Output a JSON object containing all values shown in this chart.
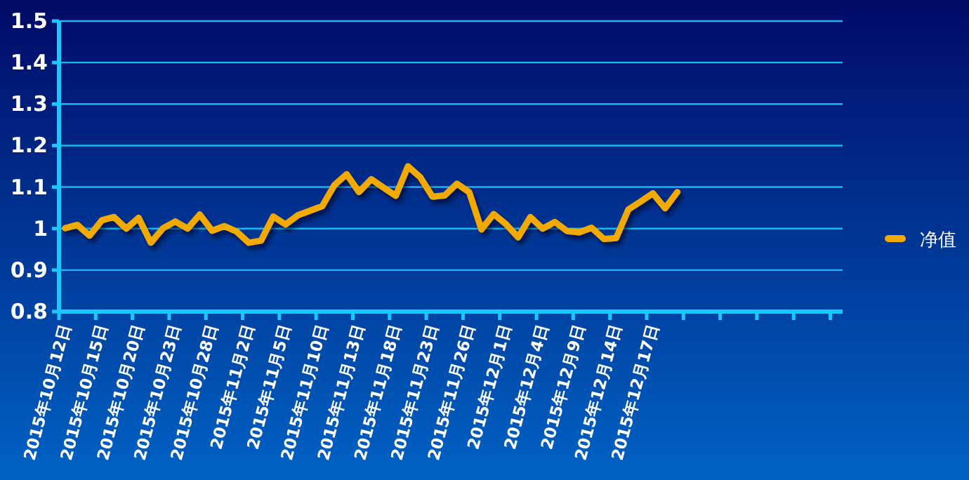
{
  "chart_data": {
    "type": "line",
    "categories": [
      "2015年10月12日",
      null,
      null,
      "2015年10月15日",
      null,
      null,
      "2015年10月20日",
      null,
      null,
      "2015年10月23日",
      null,
      null,
      "2015年10月28日",
      null,
      null,
      "2015年11月2日",
      null,
      null,
      "2015年11月5日",
      null,
      null,
      "2015年11月10日",
      null,
      null,
      "2015年11月13日",
      null,
      null,
      "2015年11月18日",
      null,
      null,
      "2015年11月23日",
      null,
      null,
      "2015年11月26日",
      null,
      null,
      "2015年12月1日",
      null,
      null,
      "2015年12月4日",
      null,
      null,
      "2015年12月9日",
      null,
      null,
      "2015年12月14日",
      null,
      null,
      "2015年12月17日",
      null,
      null,
      null,
      null,
      null,
      null,
      null,
      null,
      null,
      null,
      null,
      null,
      null,
      null,
      null
    ],
    "series": [
      {
        "name": "净值",
        "color": "#f2a900",
        "values": [
          1.001,
          1.009,
          0.983,
          1.02,
          1.028,
          1.0,
          1.026,
          0.966,
          1.001,
          1.017,
          1.0,
          1.034,
          0.995,
          1.006,
          0.993,
          0.966,
          0.971,
          1.029,
          1.01,
          1.032,
          1.043,
          1.054,
          1.105,
          1.131,
          1.088,
          1.119,
          1.099,
          1.079,
          1.15,
          1.124,
          1.077,
          1.08,
          1.108,
          1.088,
          0.998,
          1.035,
          1.011,
          0.979,
          1.028,
          1.0,
          1.016,
          0.994,
          0.991,
          1.002,
          0.975,
          0.977,
          1.046,
          1.065,
          1.085,
          1.049,
          1.088,
          null,
          null,
          null,
          null,
          null,
          null,
          null,
          null,
          null,
          null,
          null,
          null,
          null
        ]
      }
    ],
    "ylim": [
      0.8,
      1.5
    ],
    "yticks": [
      0.8,
      0.9,
      {
        "value": 1.0,
        "label": "1"
      },
      1.1,
      1.2,
      1.3,
      1.4,
      1.5
    ],
    "grid": "y",
    "legend": "right",
    "marker": "none",
    "line_style": "solid"
  }
}
